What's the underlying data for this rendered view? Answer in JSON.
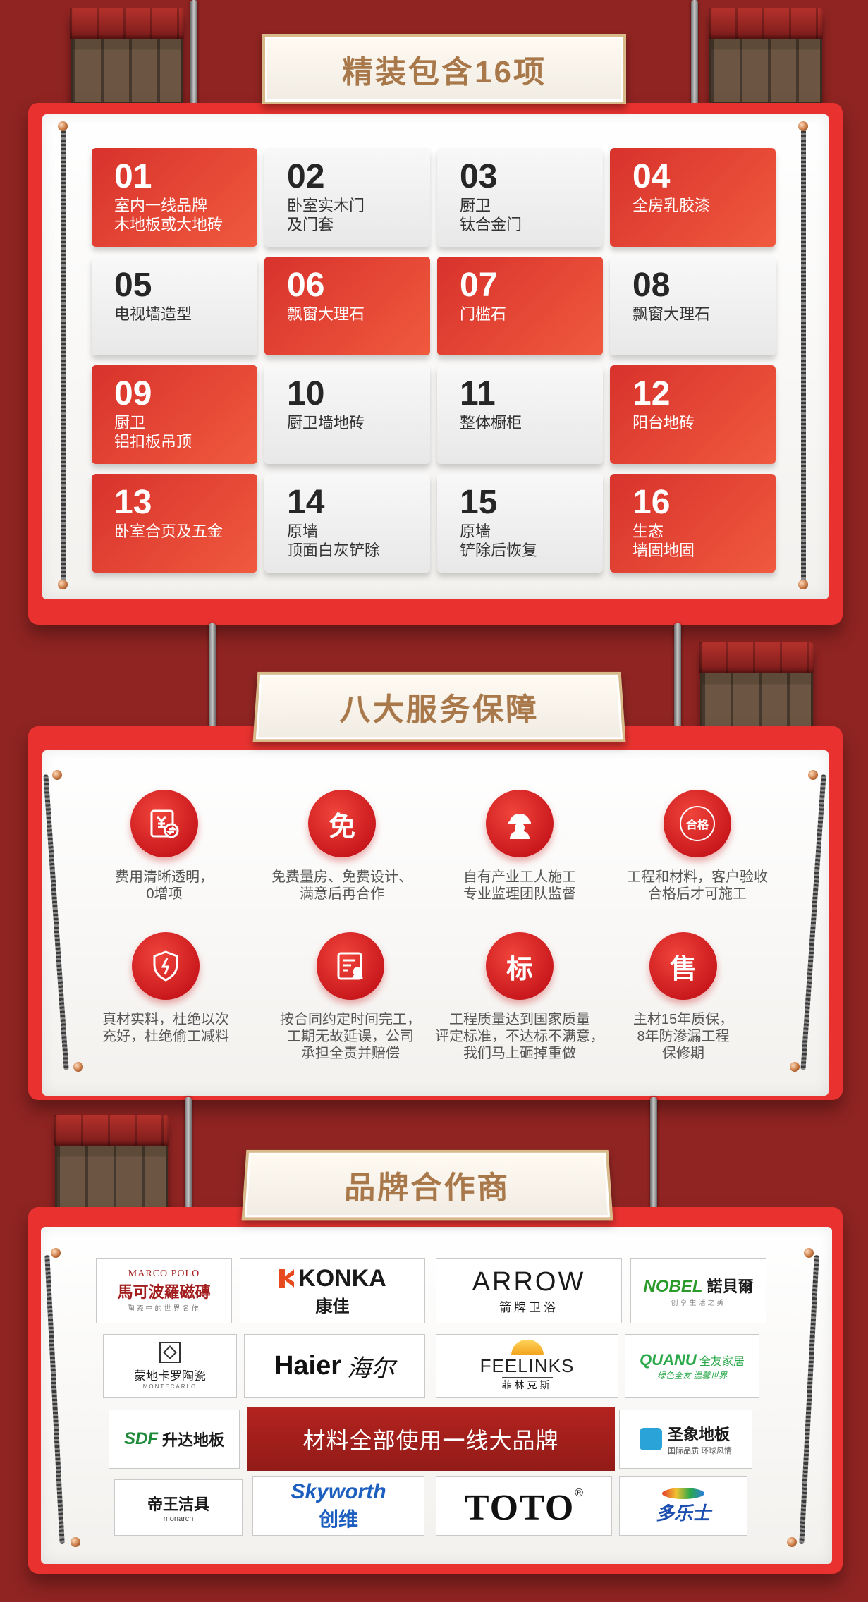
{
  "section1": {
    "title": "精装包含16项",
    "items": [
      {
        "num": "01",
        "l1": "室内一线品牌",
        "l2": "木地板或大地砖",
        "style": "red"
      },
      {
        "num": "02",
        "l1": "卧室实木门",
        "l2": "及门套",
        "style": "white"
      },
      {
        "num": "03",
        "l1": "厨卫",
        "l2": "钛合金门",
        "style": "white"
      },
      {
        "num": "04",
        "l1": "全房乳胶漆",
        "l2": "",
        "style": "red"
      },
      {
        "num": "05",
        "l1": "电视墙造型",
        "l2": "",
        "style": "white"
      },
      {
        "num": "06",
        "l1": "飘窗大理石",
        "l2": "",
        "style": "red"
      },
      {
        "num": "07",
        "l1": "门槛石",
        "l2": "",
        "style": "red"
      },
      {
        "num": "08",
        "l1": "飘窗大理石",
        "l2": "",
        "style": "white"
      },
      {
        "num": "09",
        "l1": "厨卫",
        "l2": "铝扣板吊顶",
        "style": "red"
      },
      {
        "num": "10",
        "l1": "厨卫墙地砖",
        "l2": "",
        "style": "white"
      },
      {
        "num": "11",
        "l1": "整体橱柜",
        "l2": "",
        "style": "white"
      },
      {
        "num": "12",
        "l1": "阳台地砖",
        "l2": "",
        "style": "red"
      },
      {
        "num": "13",
        "l1": "卧室合页及五金",
        "l2": "",
        "style": "red"
      },
      {
        "num": "14",
        "l1": "原墙",
        "l2": "顶面白灰铲除",
        "style": "white"
      },
      {
        "num": "15",
        "l1": "原墙",
        "l2": "铲除后恢复",
        "style": "white"
      },
      {
        "num": "16",
        "l1": "生态",
        "l2": "墙固地固",
        "style": "red"
      }
    ]
  },
  "section2": {
    "title": "八大服务保障",
    "services": [
      {
        "icon": "money-transfer-icon",
        "glyph": "",
        "lines": [
          "费用清晰透明，",
          "0增项"
        ]
      },
      {
        "icon": "free-icon",
        "glyph": "免",
        "lines": [
          "免费量房、免费设计、",
          "满意后再合作"
        ]
      },
      {
        "icon": "worker-icon",
        "glyph": "",
        "lines": [
          "自有产业工人施工",
          "专业监理团队监督"
        ]
      },
      {
        "icon": "qualified-seal-icon",
        "glyph": "合格",
        "lines": [
          "工程和材料，客户验收",
          "合格后才可施工"
        ]
      },
      {
        "icon": "shield-icon",
        "glyph": "",
        "lines": [
          "真材实料，杜绝以次",
          "充好，杜绝偷工减料"
        ]
      },
      {
        "icon": "contract-icon",
        "glyph": "",
        "lines": [
          "按合同约定时间完工，",
          "工期无故延误，公司",
          "承担全责并赔偿"
        ]
      },
      {
        "icon": "standard-icon",
        "glyph": "标",
        "lines": [
          "工程质量达到国家质量",
          "评定标准，不达标不满意，",
          "我们马上砸掉重做"
        ]
      },
      {
        "icon": "aftersale-icon",
        "glyph": "售",
        "lines": [
          "主材15年质保，",
          "8年防渗漏工程",
          "保修期"
        ]
      }
    ]
  },
  "section3": {
    "title": "品牌合作商",
    "banner": "材料全部使用一线大品牌",
    "brands": {
      "marcopolo": {
        "en": "MARCO POLO",
        "cn": "馬可波羅磁磚",
        "sub": "陶瓷中的世界名作"
      },
      "konka": {
        "en": "KONKA",
        "cn": "康佳"
      },
      "arrow": {
        "en": "ARROW",
        "cn": "箭牌卫浴"
      },
      "nobel": {
        "en": "NOBEL",
        "cn": "諾貝爾",
        "sub": "创享生活之美"
      },
      "montecarlo": {
        "cn": "蒙地卡罗陶瓷",
        "sub": "MONTECARLO"
      },
      "haier": {
        "en": "Haier",
        "cn": "海尔"
      },
      "feelinks": {
        "en": "FEELINKS",
        "cn": "菲林克斯"
      },
      "quanu": {
        "en": "QUANU",
        "cn": "全友家居",
        "sub": "绿色全友 温馨世界"
      },
      "sdf": {
        "en": "SDF",
        "cn": "升达地板"
      },
      "shengxiang": {
        "cn": "圣象地板",
        "sub": "国际品质 环球风情"
      },
      "monarch": {
        "cn": "帝王洁具",
        "sub": "monarch"
      },
      "skyworth": {
        "en": "Skyworth",
        "cn": "创维"
      },
      "toto": {
        "en": "TOTO",
        "mark": "®"
      },
      "duoleshi": {
        "cn": "多乐士"
      }
    }
  },
  "colors": {
    "background": "#8f2422",
    "panel": "#e9322f",
    "tile_red": "#e0392f",
    "title_gold": "#a8784a"
  }
}
